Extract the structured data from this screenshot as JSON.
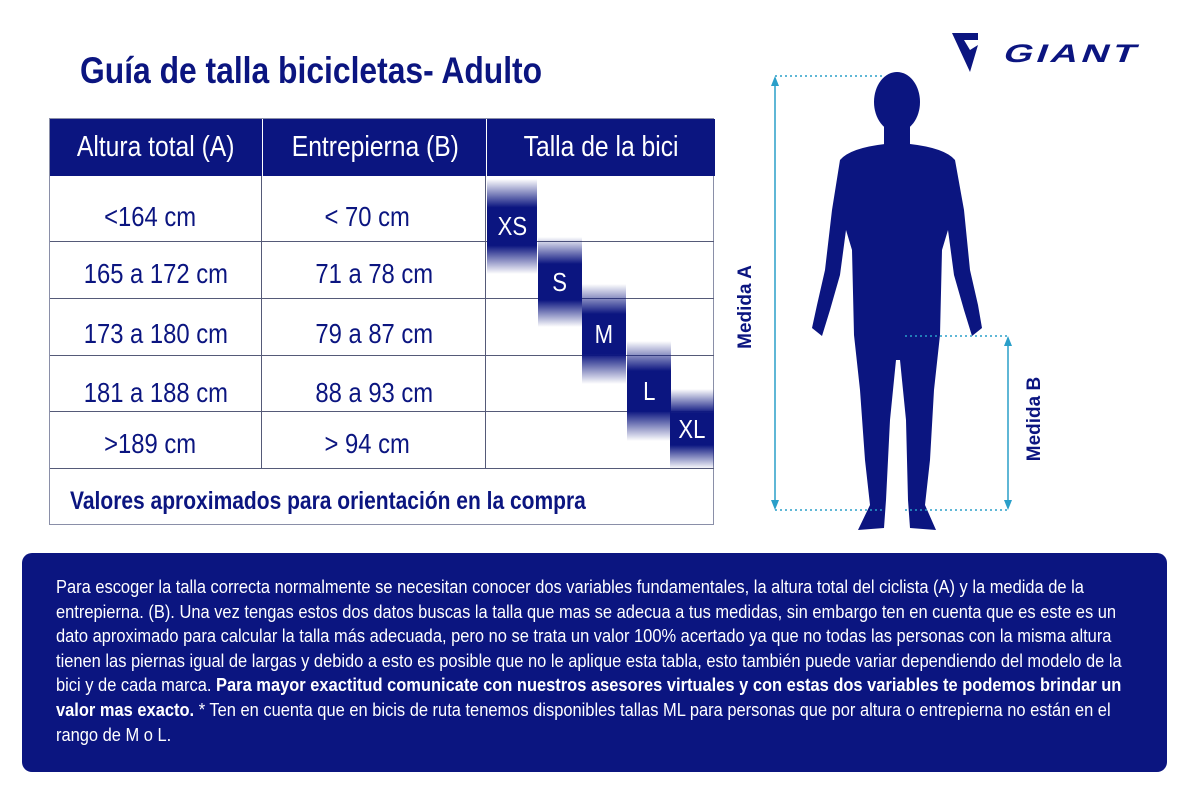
{
  "title": "Guía de talla bicicletas- Adulto",
  "brand": {
    "name": "GIANT",
    "color": "#0b1580"
  },
  "table": {
    "headers": [
      "Altura total (A)",
      "Entrepierna (B)",
      "Talla de la bici"
    ],
    "rows": [
      {
        "altura": "<164 cm",
        "entrepierna": "< 70 cm",
        "talla": "XS"
      },
      {
        "altura": "165 a 172 cm",
        "entrepierna": "71 a 78 cm",
        "talla": "S"
      },
      {
        "altura": "173 a 180 cm",
        "entrepierna": "79 a 87 cm",
        "talla": "M"
      },
      {
        "altura": "181 a 188 cm",
        "entrepierna": "88 a 93 cm",
        "talla": "L"
      },
      {
        "altura": ">189 cm",
        "entrepierna": "> 94 cm",
        "talla": "XL"
      }
    ],
    "note": "Valores aproximados para orientación en la compra"
  },
  "figure": {
    "label_a": "Medida A",
    "label_b": "Medida B",
    "arrow_color": "#2a9fc9"
  },
  "info": {
    "text_1": "Para escoger la talla correcta normalmente se necesitan conocer dos variables fundamentales, la altura total del ciclista (A) y la medida de la entrepierna. (B). Una vez tengas estos dos datos buscas la talla que mas se adecua a tus medidas, sin embargo ten en cuenta que es este es un dato aproximado para calcular la talla más adecuada, pero no se trata un valor 100% acertado ya que no todas las personas con la misma altura tienen las piernas igual de largas y debido a esto es posible que no le aplique esta tabla, esto también puede variar dependiendo del modelo de la bici y de cada marca.",
    "text_bold": "Para mayor exactitud comunicate con nuestros asesores virtuales y con estas dos variables te podemos brindar un valor mas exacto.",
    "text_2": "* Ten en cuenta que en bicis de ruta tenemos disponibles tallas ML para personas que por altura o entrepierna no están en el rango de M o L."
  }
}
